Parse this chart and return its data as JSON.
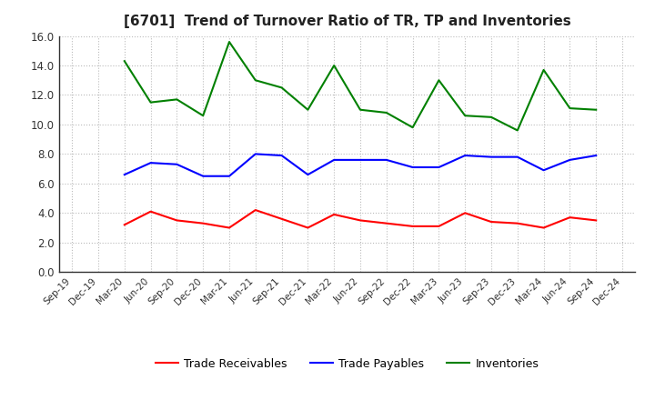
{
  "title": "[6701]  Trend of Turnover Ratio of TR, TP and Inventories",
  "x_labels": [
    "Sep-19",
    "Dec-19",
    "Mar-20",
    "Jun-20",
    "Sep-20",
    "Dec-20",
    "Mar-21",
    "Jun-21",
    "Sep-21",
    "Dec-21",
    "Mar-22",
    "Jun-22",
    "Sep-22",
    "Dec-22",
    "Mar-23",
    "Jun-23",
    "Sep-23",
    "Dec-23",
    "Mar-24",
    "Jun-24",
    "Sep-24",
    "Dec-24"
  ],
  "trade_receivables": [
    null,
    null,
    3.2,
    4.1,
    3.5,
    3.3,
    3.0,
    4.2,
    3.6,
    3.0,
    3.9,
    3.5,
    3.3,
    3.1,
    3.1,
    4.0,
    3.4,
    3.3,
    3.0,
    3.7,
    3.5,
    null
  ],
  "trade_payables": [
    null,
    null,
    6.6,
    7.4,
    7.3,
    6.5,
    6.5,
    8.0,
    7.9,
    6.6,
    7.6,
    7.6,
    7.6,
    7.1,
    7.1,
    7.9,
    7.8,
    7.8,
    6.9,
    7.6,
    7.9,
    null
  ],
  "inventories": [
    null,
    null,
    14.3,
    11.5,
    11.7,
    10.6,
    15.6,
    13.0,
    12.5,
    11.0,
    14.0,
    11.0,
    10.8,
    9.8,
    13.0,
    10.6,
    10.5,
    9.6,
    13.7,
    11.1,
    11.0,
    null
  ],
  "ylim": [
    0.0,
    16.0
  ],
  "yticks": [
    0.0,
    2.0,
    4.0,
    6.0,
    8.0,
    10.0,
    12.0,
    14.0,
    16.0
  ],
  "color_tr": "#FF0000",
  "color_tp": "#0000FF",
  "color_inv": "#008000",
  "legend_labels": [
    "Trade Receivables",
    "Trade Payables",
    "Inventories"
  ],
  "background_color": "#FFFFFF",
  "grid_color": "#BBBBBB",
  "title_color": "#222222"
}
